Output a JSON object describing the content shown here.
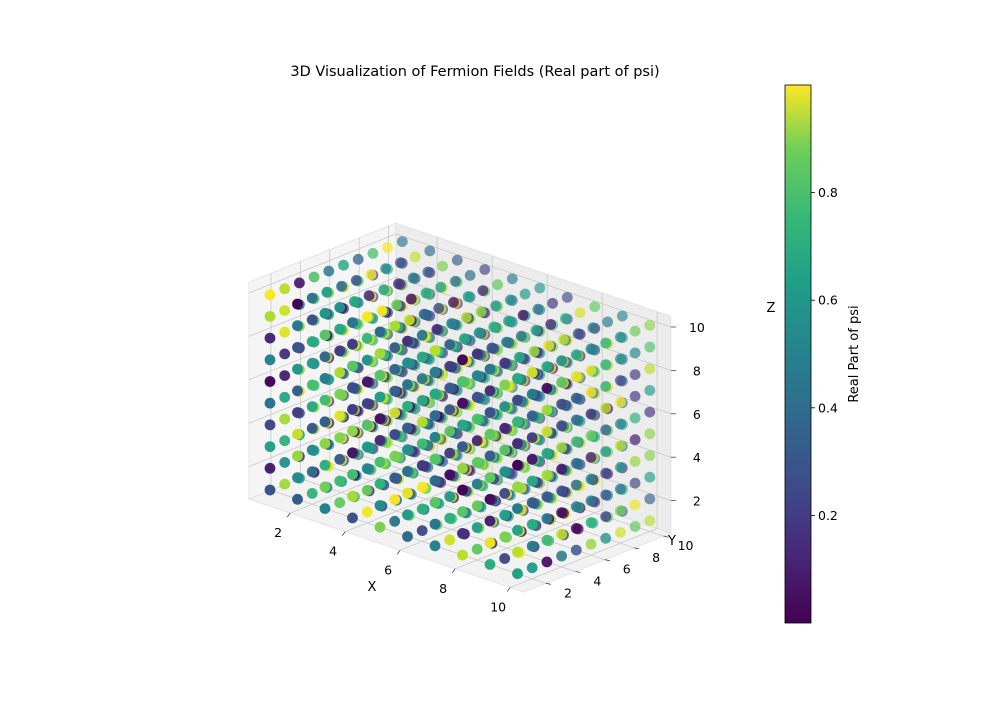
{
  "chart_data": {
    "type": "scatter",
    "title": "3D Visualization of Fermion Fields (Real part of psi)",
    "xlabel": "X",
    "ylabel": "Y",
    "zlabel": "Z",
    "xlim": [
      1,
      10
    ],
    "ylim": [
      1,
      10
    ],
    "zlim": [
      1,
      10
    ],
    "x_ticks": [
      "2",
      "4",
      "6",
      "8",
      "10"
    ],
    "y_ticks": [
      "2",
      "4",
      "6",
      "8",
      "10"
    ],
    "z_ticks": [
      "2",
      "4",
      "6",
      "8",
      "10"
    ],
    "grid": true,
    "projection": "3d",
    "x": [
      1,
      2,
      3,
      4,
      5,
      6,
      7,
      8,
      9,
      10
    ],
    "y": [
      1,
      2,
      3,
      4,
      5,
      6,
      7,
      8,
      9,
      10
    ],
    "z": [
      1,
      2,
      3,
      4,
      5,
      6,
      7,
      8,
      9,
      10
    ],
    "color_value": "random in [0, 1] for each of the 1000 lattice points",
    "colormap": "viridis",
    "colorbar": {
      "label": "Real Part of psi",
      "range": [
        0,
        1
      ],
      "ticks": [
        "0.2",
        "0.4",
        "0.6",
        "0.8"
      ],
      "placement": "right"
    }
  }
}
